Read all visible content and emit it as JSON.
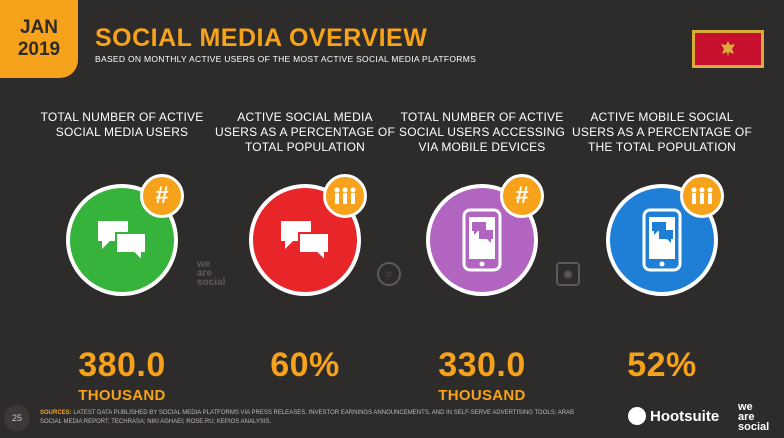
{
  "header": {
    "month": "JAN",
    "year": "2019",
    "title": "SOCIAL MEDIA OVERVIEW",
    "subtitle": "BASED ON MONTHLY ACTIVE USERS OF THE MOST ACTIVE SOCIAL MEDIA PLATFORMS"
  },
  "flag": {
    "country_flag_icon": "montenegro-flag-icon",
    "colors": {
      "field": "#c8102e",
      "border": "#d8ad3a"
    }
  },
  "stats": [
    {
      "label": "TOTAL NUMBER OF ACTIVE SOCIAL MEDIA USERS",
      "value": "380.0",
      "unit": "THOUSAND",
      "color": "#36b33b",
      "icon": "chat-bubbles-icon",
      "badge_icon": "hash-icon"
    },
    {
      "label": "ACTIVE SOCIAL MEDIA USERS AS A PERCENTAGE OF TOTAL POPULATION",
      "value": "60%",
      "unit": "",
      "color": "#e8262a",
      "icon": "chat-bubbles-icon",
      "badge_icon": "people-icon"
    },
    {
      "label": "TOTAL NUMBER OF ACTIVE SOCIAL USERS ACCESSING VIA MOBILE DEVICES",
      "value": "330.0",
      "unit": "THOUSAND",
      "color": "#b164c0",
      "icon": "mobile-chat-icon",
      "badge_icon": "hash-icon"
    },
    {
      "label": "ACTIVE MOBILE SOCIAL USERS AS A PERCENTAGE OF THE TOTAL POPULATION",
      "value": "52%",
      "unit": "",
      "color": "#1f7fd6",
      "icon": "mobile-chat-icon",
      "badge_icon": "people-icon"
    }
  ],
  "watermark": "we are social",
  "footer": {
    "page_number": "25",
    "sources_label": "SOURCES:",
    "sources_text": "LATEST DATA PUBLISHED BY SOCIAL MEDIA PLATFORMS VIA PRESS RELEASES, INVESTOR EARNINGS ANNOUNCEMENTS, AND IN SELF-SERVE ADVERTISING TOOLS; ARAB SOCIAL MEDIA REPORT; TECHRASA; NIKI AGHAEI; ROSE.RU; KEPIOS ANALYSIS.",
    "hootsuite": "Hootsuite",
    "was_line1": "we",
    "was_line2": "are",
    "was_line3": "social"
  },
  "colors": {
    "accent": "#f7a21b",
    "background": "#2e2b2b"
  }
}
